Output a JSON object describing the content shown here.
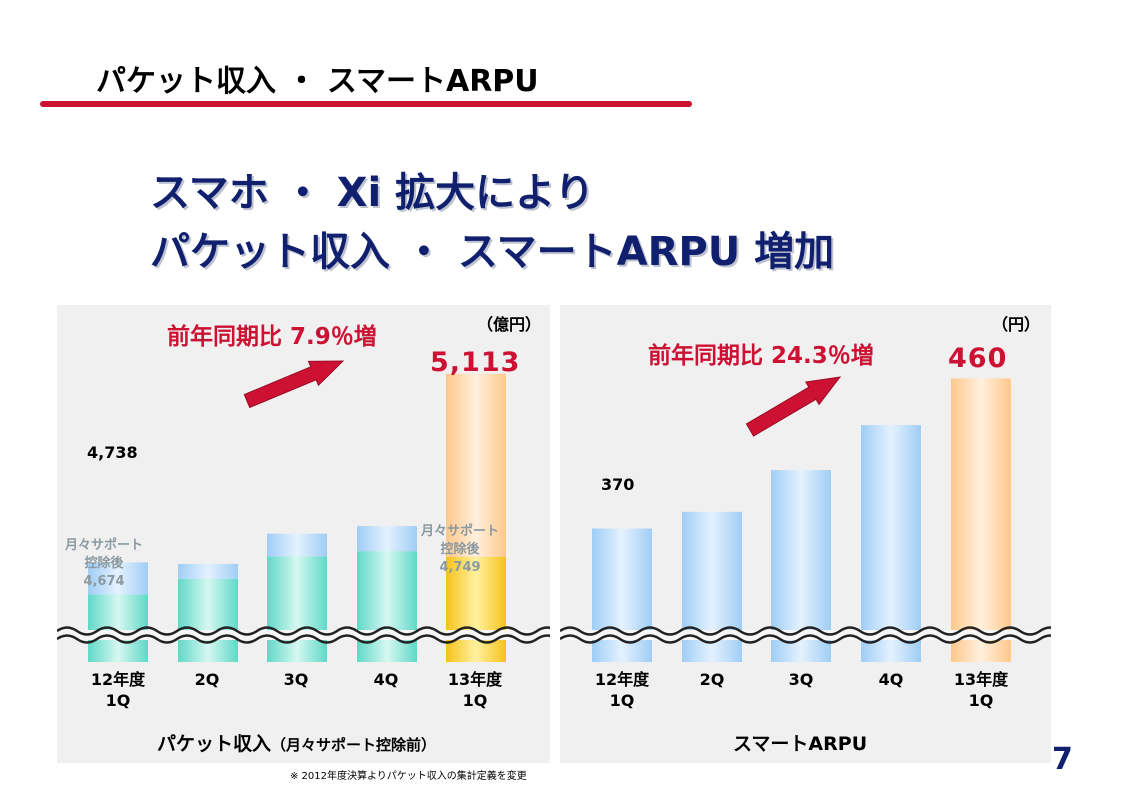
{
  "header": {
    "title": "パケット収入 ・ スマートARPU"
  },
  "headline": {
    "line1": "スマホ ・ Xi 拡大により",
    "line2": "パケット収入 ・ スマートARPU 増加"
  },
  "colors": {
    "accent_red": "#cc1133",
    "navy": "#10206e",
    "panel_bg": "#f0f0f0"
  },
  "left_chart": {
    "unit": "（億円）",
    "yoy_label": "前年同期比 7.9％増",
    "title_main": "パケット収入",
    "title_sub": "（月々サポート控除前）",
    "first_value_label": "4,738",
    "last_value_label": "5,113",
    "note_first": {
      "line1": "月々サポート",
      "line2": "控除後",
      "line3": "4,674"
    },
    "note_last": {
      "line1": "月々サポート",
      "line2": "控除後",
      "line3": "4,749"
    },
    "categories": [
      {
        "line1": "12年度",
        "line2": "1Q"
      },
      {
        "line1": "",
        "line2": "2Q"
      },
      {
        "line1": "",
        "line2": "3Q"
      },
      {
        "line1": "",
        "line2": "4Q"
      },
      {
        "line1": "13年度",
        "line2": "1Q"
      }
    ]
  },
  "right_chart": {
    "unit": "（円）",
    "yoy_label": "前年同期比 24.3％増",
    "title": "スマートARPU",
    "first_value_label": "370",
    "last_value_label": "460",
    "categories": [
      {
        "line1": "12年度",
        "line2": "1Q"
      },
      {
        "line1": "",
        "line2": "2Q"
      },
      {
        "line1": "",
        "line2": "3Q"
      },
      {
        "line1": "",
        "line2": "4Q"
      },
      {
        "line1": "13年度",
        "line2": "1Q"
      }
    ]
  },
  "chart_data": [
    {
      "type": "bar",
      "title": "パケット収入（月々サポート控除前）",
      "ylabel": "億円",
      "categories": [
        "12年度 1Q",
        "2Q",
        "3Q",
        "4Q",
        "13年度 1Q"
      ],
      "ylim": [
        4540,
        5170
      ],
      "axis_break": true,
      "series": [
        {
          "name": "月々サポート控除後",
          "values": [
            4674,
            4705,
            4750,
            4760,
            4749
          ]
        },
        {
          "name": "パケット収入（控除前）",
          "values": [
            4738,
            4735,
            4795,
            4810,
            5113
          ]
        }
      ]
    },
    {
      "type": "bar",
      "title": "スマートARPU",
      "ylabel": "円",
      "categories": [
        "12年度 1Q",
        "2Q",
        "3Q",
        "4Q",
        "13年度 1Q"
      ],
      "ylim": [
        290,
        480
      ],
      "axis_break": true,
      "series": [
        {
          "name": "スマートARPU",
          "values": [
            370,
            380,
            405,
            432,
            460
          ]
        }
      ]
    }
  ],
  "footer": {
    "footnote": "※ 2012年度決算よりパケット収入の集計定義を変更",
    "page_number": "7"
  }
}
